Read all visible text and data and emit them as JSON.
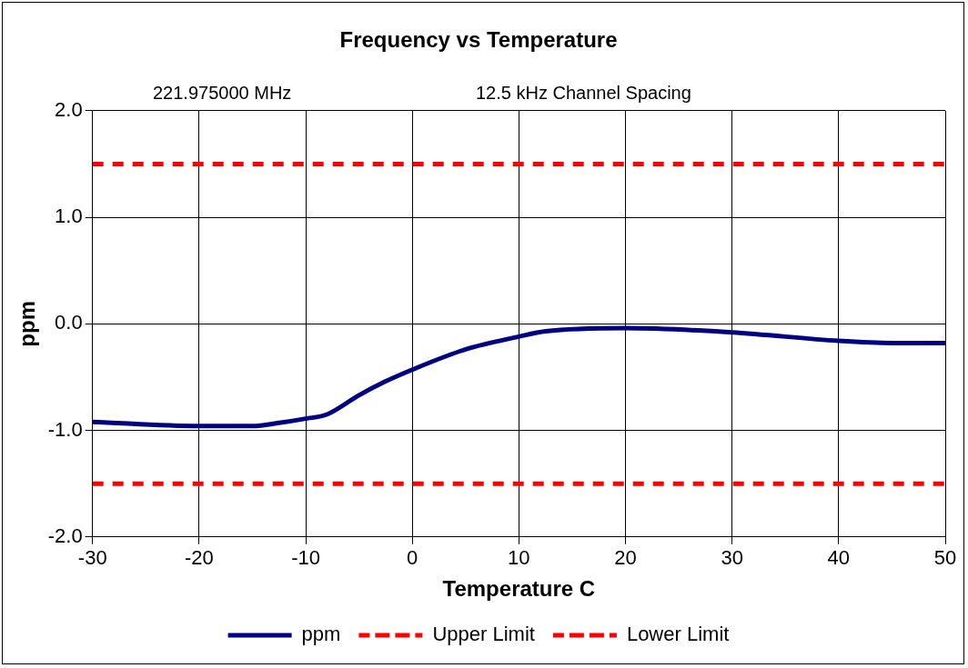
{
  "chart_data": {
    "type": "line",
    "title": "Frequency vs Temperature",
    "annotations": [
      "221.975000 MHz",
      "12.5 kHz Channel Spacing"
    ],
    "xlabel": "Temperature C",
    "ylabel": "ppm",
    "xlim": [
      -30,
      50
    ],
    "xticks": [
      -30,
      -20,
      -10,
      0,
      10,
      20,
      30,
      40,
      50
    ],
    "ylim": [
      -2,
      2
    ],
    "yticks": [
      {
        "value": -2,
        "label": "-2.0"
      },
      {
        "value": -1,
        "label": "-1.0"
      },
      {
        "value": 0,
        "label": "0.0"
      },
      {
        "value": 1,
        "label": "1.0"
      },
      {
        "value": 2,
        "label": "2.0"
      }
    ],
    "grid": true,
    "legend": "bottom",
    "marker": "none",
    "series": [
      {
        "name": "ppm",
        "color": "#000080",
        "line_style": "solid",
        "x": [
          -30,
          -20,
          -15,
          -12.5,
          -10,
          -8,
          -5,
          -2.5,
          0,
          5,
          10,
          12.5,
          20,
          30,
          40,
          45,
          50
        ],
        "values": [
          -0.92,
          -0.96,
          -0.96,
          -0.93,
          -0.89,
          -0.85,
          -0.67,
          -0.54,
          -0.43,
          -0.24,
          -0.12,
          -0.07,
          -0.04,
          -0.08,
          -0.16,
          -0.18,
          -0.18
        ]
      },
      {
        "name": "Upper Limit",
        "color": "#ff0000",
        "line_style": "dashed",
        "x": [
          -30,
          50
        ],
        "values": [
          1.5,
          1.5
        ]
      },
      {
        "name": "Lower Limit",
        "color": "#ff0000",
        "line_style": "dashed",
        "x": [
          -30,
          50
        ],
        "values": [
          -1.5,
          -1.5
        ]
      }
    ]
  }
}
